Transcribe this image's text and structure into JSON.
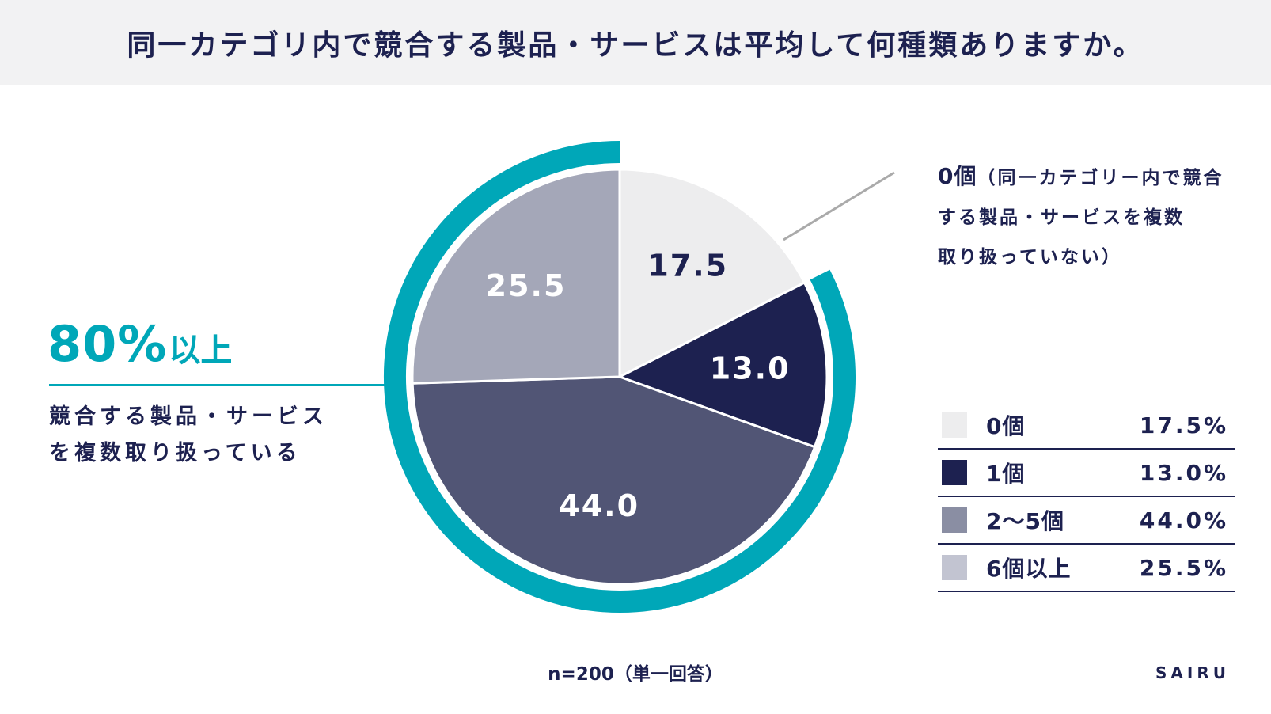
{
  "title": "同一カテゴリ内で競合する製品・サービスは平均して何種類ありますか。",
  "chart_data": {
    "type": "pie",
    "unit": "%",
    "slices": [
      {
        "label": "0個",
        "value": 17.5,
        "value_label": "17.5",
        "legend_value": "17.5%",
        "color": "#ededee",
        "text_color": "#1d2150"
      },
      {
        "label": "1個",
        "value": 13.0,
        "value_label": "13.0",
        "legend_value": "13.0%",
        "color": "#1d2150",
        "text_color": "#ffffff"
      },
      {
        "label": "2〜5個",
        "value": 44.0,
        "value_label": "44.0",
        "legend_value": "44.0%",
        "color": "#515575",
        "text_color": "#ffffff"
      },
      {
        "label": "6個以上",
        "value": 25.5,
        "value_label": "25.5",
        "legend_value": "25.5%",
        "color": "#a4a7b8",
        "text_color": "#ffffff"
      }
    ],
    "highlight_arc": {
      "covers": [
        "1個",
        "2〜5個",
        "6個以上"
      ],
      "color": "#00a7b8"
    }
  },
  "legend_swatch_colors": [
    "#ededee",
    "#1d2150",
    "#8a8ea3",
    "#c2c4d1"
  ],
  "callout": {
    "big_number": "80%",
    "big_suffix": "以上",
    "line1": "競合する製品・サービス",
    "line2": "を複数取り扱っている"
  },
  "annotation": {
    "title": "0個",
    "line1": "（同一カテゴリー内で競合",
    "line2": "する製品・サービスを複数",
    "line3": "取り扱っていない）"
  },
  "footnote": "n=200（単一回答）",
  "brand": "SAIRU"
}
